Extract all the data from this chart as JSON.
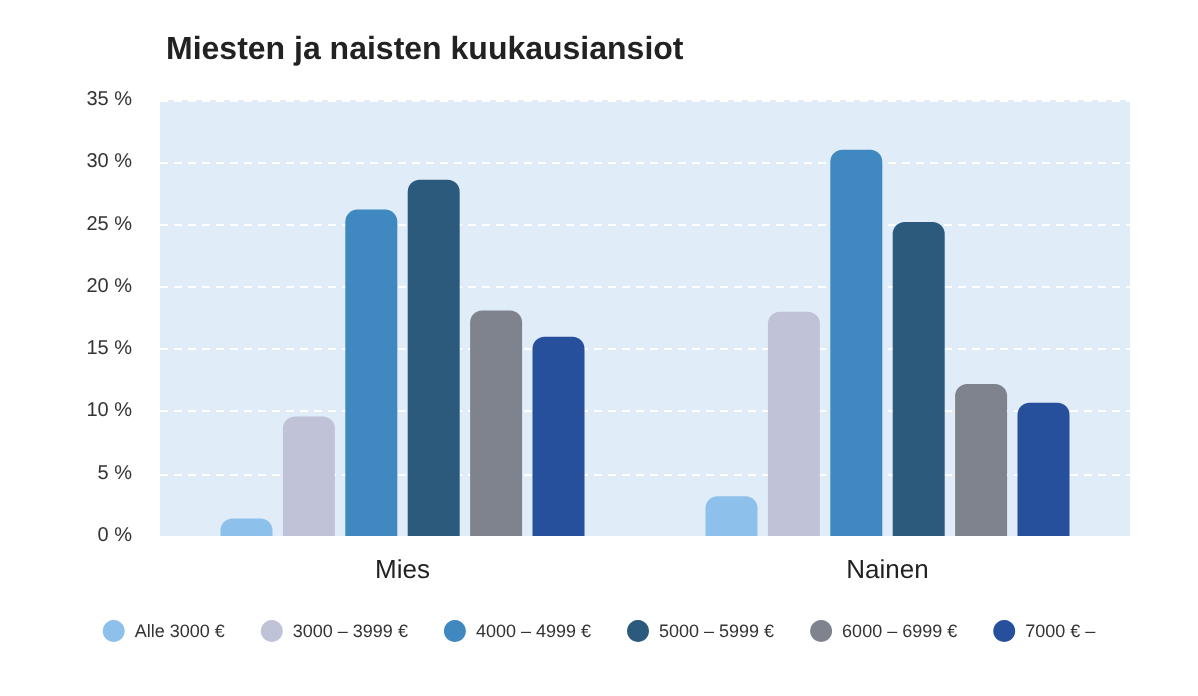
{
  "chart_data": {
    "type": "bar",
    "title": "Miesten ja naisten kuukausiansiot",
    "categories": [
      "Mies",
      "Nainen"
    ],
    "series": [
      {
        "name": "Alle 3000 €",
        "color": "#8dc0ea",
        "values": [
          1.4,
          3.2
        ]
      },
      {
        "name": "3000 – 3999 €",
        "color": "#c0c3d8",
        "values": [
          9.6,
          18.0
        ]
      },
      {
        "name": "4000 – 4999 €",
        "color": "#3f88c0",
        "values": [
          26.2,
          31.0
        ]
      },
      {
        "name": "5000 – 5999 €",
        "color": "#2c5a7c",
        "values": [
          28.6,
          25.2
        ]
      },
      {
        "name": "6000 – 6999 €",
        "color": "#7f838e",
        "values": [
          18.1,
          12.2
        ]
      },
      {
        "name": "7000 € –",
        "color": "#264f9c",
        "values": [
          16.0,
          10.7
        ]
      }
    ],
    "ylim": [
      0,
      35
    ],
    "yticks": [
      {
        "value": 0,
        "label": "0 %"
      },
      {
        "value": 5,
        "label": "5 %"
      },
      {
        "value": 10,
        "label": "10 %"
      },
      {
        "value": 15,
        "label": "15 %"
      },
      {
        "value": 20,
        "label": "20 %"
      },
      {
        "value": 25,
        "label": "25 %"
      },
      {
        "value": 30,
        "label": "30 %"
      },
      {
        "value": 35,
        "label": "35 %"
      }
    ],
    "grid": "y",
    "legend": "bottom"
  }
}
